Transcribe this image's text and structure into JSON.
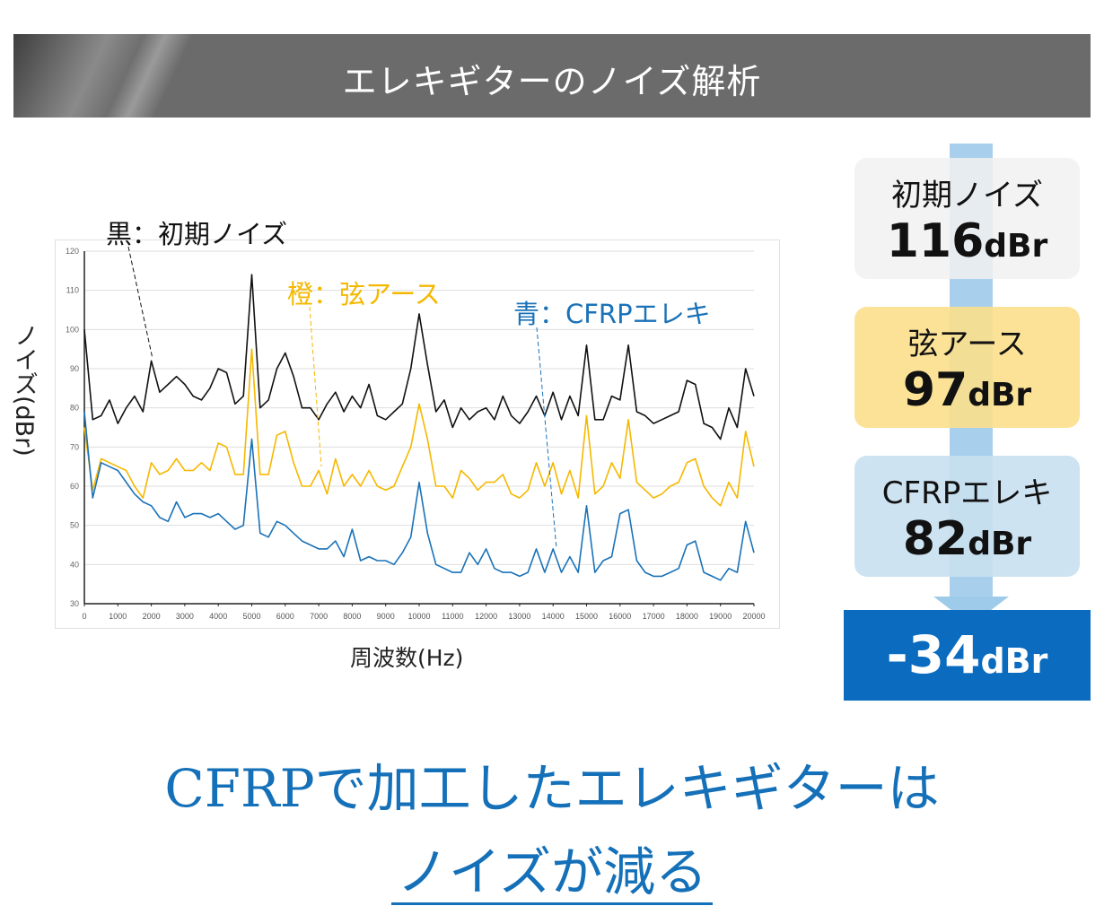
{
  "banner": {
    "title": "エレキギターのノイズ解析"
  },
  "chart_data": {
    "type": "line",
    "xlabel": "周波数(Hz)",
    "ylabel": "ノイズ(dBr)",
    "xlim": [
      0,
      20000
    ],
    "ylim": [
      30,
      120
    ],
    "xticks": [
      0,
      1000,
      2000,
      3000,
      4000,
      5000,
      6000,
      7000,
      8000,
      9000,
      10000,
      11000,
      12000,
      13000,
      14000,
      15000,
      16000,
      17000,
      18000,
      19000,
      20000
    ],
    "yticks": [
      30,
      40,
      50,
      60,
      70,
      80,
      90,
      100,
      110,
      120
    ],
    "grid": true,
    "x_step": 250,
    "series": [
      {
        "name": "黒：初期ノイズ",
        "color": "#111111",
        "values": [
          100,
          77,
          78,
          82,
          76,
          80,
          83,
          79,
          92,
          84,
          86,
          88,
          86,
          83,
          82,
          85,
          90,
          89,
          81,
          83,
          114,
          80,
          82,
          90,
          94,
          88,
          80,
          80,
          77,
          81,
          84,
          79,
          83,
          80,
          86,
          78,
          77,
          79,
          81,
          90,
          104,
          91,
          79,
          82,
          75,
          80,
          77,
          79,
          80,
          77,
          83,
          78,
          76,
          79,
          83,
          78,
          84,
          77,
          83,
          78,
          96,
          77,
          77,
          83,
          82,
          96,
          79,
          78,
          76,
          77,
          78,
          79,
          87,
          86,
          76,
          75,
          72,
          80,
          75,
          90,
          83
        ]
      },
      {
        "name": "橙：弦アース",
        "color": "#f5b800",
        "values": [
          75,
          59,
          67,
          66,
          65,
          64,
          60,
          57,
          66,
          63,
          64,
          67,
          64,
          64,
          66,
          64,
          71,
          70,
          63,
          63,
          95,
          63,
          63,
          73,
          74,
          66,
          60,
          60,
          64,
          58,
          67,
          60,
          63,
          60,
          64,
          60,
          59,
          60,
          65,
          70,
          81,
          72,
          60,
          60,
          57,
          64,
          62,
          59,
          61,
          61,
          63,
          58,
          57,
          59,
          66,
          60,
          66,
          58,
          64,
          57,
          78,
          58,
          60,
          66,
          62,
          77,
          61,
          59,
          57,
          58,
          60,
          61,
          66,
          67,
          60,
          57,
          55,
          61,
          57,
          74,
          65
        ]
      },
      {
        "name": "青：CFRPエレキ",
        "color": "#1a72b8",
        "values": [
          79,
          57,
          66,
          65,
          64,
          61,
          58,
          56,
          55,
          52,
          51,
          56,
          52,
          53,
          53,
          52,
          53,
          51,
          49,
          50,
          72,
          48,
          47,
          51,
          50,
          48,
          46,
          45,
          44,
          44,
          46,
          42,
          49,
          41,
          42,
          41,
          41,
          40,
          43,
          47,
          61,
          48,
          40,
          39,
          38,
          38,
          43,
          40,
          44,
          39,
          38,
          38,
          37,
          38,
          44,
          38,
          44,
          38,
          42,
          38,
          55,
          38,
          41,
          42,
          53,
          54,
          41,
          38,
          37,
          37,
          38,
          39,
          45,
          46,
          38,
          37,
          36,
          39,
          38,
          51,
          43
        ]
      }
    ]
  },
  "summary": {
    "initial": {
      "label": "初期ノイズ",
      "value": "116",
      "unit": "dBr"
    },
    "ground": {
      "label": "弦アース",
      "value": "97",
      "unit": "dBr"
    },
    "cfrp": {
      "label": "CFRPエレキ",
      "value": "82",
      "unit": "dBr"
    },
    "result": {
      "value": "-34",
      "unit": "dBr"
    },
    "colors": {
      "initial": "#f1f1f1",
      "ground": "#fbdf8c",
      "cfrp": "#c8e0f0",
      "result": "#0a6bbf",
      "arrow": "#9fcbea"
    }
  },
  "conclusion": {
    "line1": "CFRPで加工したエレキギターは",
    "line2": "ノイズが減る"
  }
}
